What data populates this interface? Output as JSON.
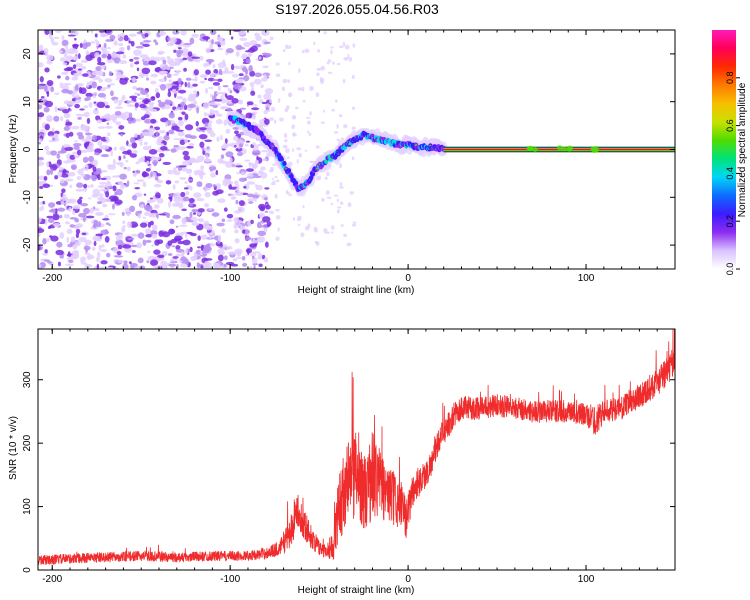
{
  "figure_title": "S197.2026.055.04.56.R03",
  "colors": {
    "scatter_light": "#e3cfff",
    "scatter_mid": "#b58cf2",
    "scatter_dark": "#7a2ce0",
    "snr_line": "#ef2b2b",
    "axis": "#000000"
  },
  "chart_data": [
    {
      "type": "heatmap",
      "name": "spectrogram",
      "xlabel": "Height of straight line (km)",
      "ylabel": "Frequency (Hz)",
      "xlim": [
        -208,
        150
      ],
      "ylim": [
        -25,
        25
      ],
      "xticks": [
        -200,
        -100,
        0,
        100
      ],
      "yticks": [
        -20,
        -10,
        0,
        10,
        20
      ],
      "x_tick_labels": [
        "-200",
        "-100",
        "0",
        "100"
      ],
      "y_tick_labels": [
        "-20",
        "-10",
        "0",
        "10",
        "20"
      ],
      "noise_region": {
        "x_range": [
          -208,
          -78
        ],
        "y_range": [
          -25,
          25
        ]
      },
      "sparse_region": {
        "x_range": [
          -78,
          -30
        ]
      },
      "signal_track": {
        "x": [
          -100,
          -95,
          -90,
          -85,
          -80,
          -75,
          -70,
          -65,
          -62,
          -58,
          -55,
          -52,
          -48,
          -45,
          -40,
          -35,
          -30,
          -25,
          -20,
          -15,
          -10,
          -5,
          0,
          5,
          10,
          15,
          20,
          30,
          40,
          50,
          60,
          70,
          80,
          90,
          100,
          110,
          120,
          130,
          140,
          150
        ],
        "freq": [
          6.5,
          6,
          5,
          4,
          2,
          0,
          -3,
          -6,
          -8,
          -7.5,
          -6,
          -4,
          -3,
          -2,
          -1,
          1,
          2,
          3,
          2.5,
          2,
          1.5,
          1,
          1,
          0.5,
          0.5,
          0.3,
          0.2,
          0,
          0,
          0,
          0,
          0,
          0,
          0,
          0,
          0,
          0,
          0,
          0,
          0
        ]
      },
      "steady_line": {
        "x_range": [
          20,
          150
        ],
        "freq": 0
      },
      "colorbar": {
        "label": "Normalized spectral amplitude",
        "range": [
          0,
          1
        ],
        "ticks": [
          0,
          0.2,
          0.4,
          0.6,
          0.8
        ],
        "tick_labels": [
          "0.0",
          "0.2",
          "0.4",
          "0.6",
          "0.8"
        ],
        "colormap": [
          "#ffffff",
          "#d9c2ff",
          "#8c2bf0",
          "#3b1cff",
          "#0e6cff",
          "#00d6f5",
          "#00e27a",
          "#4fdc00",
          "#c8e000",
          "#f6c000",
          "#ff7a00",
          "#ff2a00",
          "#ff0058",
          "#ff1bb8"
        ]
      }
    },
    {
      "type": "line",
      "name": "snr",
      "xlabel": "Height of straight line (km)",
      "ylabel": "SNR (10 * v/v)",
      "xlim": [
        -208,
        150
      ],
      "ylim": [
        0,
        380
      ],
      "xticks": [
        -200,
        -100,
        0,
        100
      ],
      "yticks": [
        0,
        100,
        200,
        300
      ],
      "x_tick_labels": [
        "-200",
        "-100",
        "0",
        "100"
      ],
      "y_tick_labels": [
        "0",
        "100",
        "200",
        "300"
      ],
      "series": [
        {
          "name": "SNR",
          "x": [
            -208,
            -190,
            -170,
            -150,
            -130,
            -110,
            -95,
            -85,
            -78,
            -72,
            -66,
            -62,
            -58,
            -54,
            -50,
            -46,
            -42,
            -38,
            -35,
            -32,
            -28,
            -24,
            -20,
            -16,
            -12,
            -8,
            -4,
            -1,
            2,
            6,
            10,
            14,
            18,
            22,
            26,
            30,
            40,
            50,
            60,
            70,
            80,
            90,
            100,
            105,
            110,
            120,
            130,
            140,
            146,
            150
          ],
          "values": [
            15,
            18,
            20,
            22,
            20,
            22,
            22,
            24,
            28,
            35,
            60,
            95,
            70,
            50,
            35,
            30,
            40,
            110,
            130,
            150,
            150,
            120,
            150,
            140,
            120,
            110,
            100,
            80,
            120,
            140,
            150,
            175,
            210,
            225,
            245,
            255,
            255,
            260,
            255,
            250,
            250,
            250,
            245,
            235,
            250,
            255,
            275,
            295,
            315,
            335
          ],
          "noise_amplitude": [
            8,
            8,
            8,
            8,
            8,
            8,
            8,
            8,
            10,
            12,
            30,
            25,
            25,
            18,
            12,
            12,
            25,
            60,
            65,
            80,
            70,
            60,
            75,
            55,
            50,
            45,
            40,
            30,
            30,
            25,
            22,
            20,
            20,
            20,
            20,
            20,
            18,
            18,
            18,
            18,
            18,
            18,
            18,
            25,
            18,
            18,
            20,
            22,
            25,
            25
          ]
        }
      ]
    }
  ]
}
